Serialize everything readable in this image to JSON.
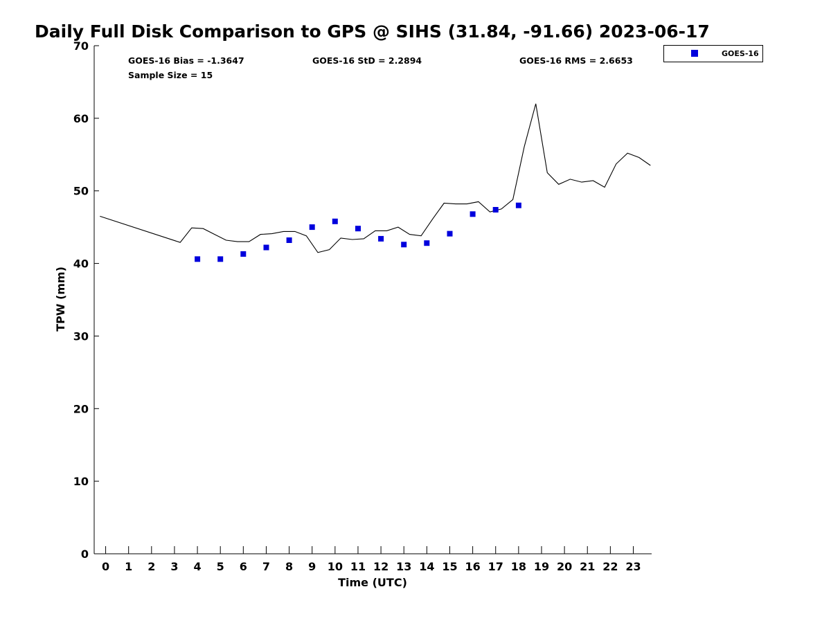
{
  "chart_data": {
    "type": "scatter",
    "title": "Daily Full Disk Comparison to GPS @ SIHS (31.84, -91.66) 2023-06-17",
    "xlabel": "Time (UTC)",
    "ylabel": "TPW (mm)",
    "xlim": [
      -0.5,
      23.8
    ],
    "ylim": [
      0,
      70
    ],
    "x_ticks": [
      0,
      1,
      2,
      3,
      4,
      5,
      6,
      7,
      8,
      9,
      10,
      11,
      12,
      13,
      14,
      15,
      16,
      17,
      18,
      19,
      20,
      21,
      22,
      23
    ],
    "y_ticks": [
      0,
      10,
      20,
      30,
      40,
      50,
      60,
      70
    ],
    "grid": false,
    "legend_position": "top-right-outside",
    "stats": {
      "bias": "GOES-16 Bias = -1.3647",
      "std": "GOES-16 StD = 2.2894",
      "rms": "GOES-16 RMS = 2.6653",
      "sample": "Sample Size = 15"
    },
    "series": [
      {
        "name": "GOES-16",
        "kind": "scatter",
        "color": "#0000dd",
        "x": [
          4,
          5,
          6,
          7,
          8,
          9,
          10,
          11,
          12,
          13,
          14,
          15,
          16,
          17,
          18
        ],
        "y": [
          40.6,
          40.6,
          41.3,
          42.2,
          43.2,
          45.0,
          45.8,
          44.8,
          43.4,
          42.6,
          42.8,
          44.1,
          46.8,
          47.4,
          48.0
        ]
      },
      {
        "kind": "line",
        "color": "#000000",
        "x": [
          -0.25,
          3.25,
          3.75,
          4.25,
          4.75,
          5.25,
          5.75,
          6.25,
          6.75,
          7.25,
          7.75,
          8.25,
          8.75,
          9.25,
          9.75,
          10.25,
          10.75,
          11.25,
          11.75,
          12.25,
          12.75,
          13.25,
          13.75,
          14.25,
          14.75,
          15.25,
          15.75,
          16.25,
          16.75,
          17.25,
          17.75,
          18.25,
          18.75,
          19.25,
          19.75,
          20.25,
          20.75,
          21.25,
          21.75,
          22.25,
          22.75,
          23.25,
          23.75
        ],
        "y": [
          46.5,
          42.9,
          44.9,
          44.8,
          44.0,
          43.2,
          43.0,
          43.0,
          44.0,
          44.1,
          44.4,
          44.4,
          43.8,
          41.5,
          41.9,
          43.5,
          43.3,
          43.4,
          44.5,
          44.5,
          45.0,
          44.0,
          43.8,
          46.1,
          48.3,
          48.2,
          48.2,
          48.5,
          47.1,
          47.5,
          48.8,
          56.1,
          62.0,
          52.5,
          50.9,
          51.6,
          51.2,
          51.4,
          50.5,
          53.7,
          55.2,
          54.6,
          53.5
        ]
      }
    ]
  }
}
